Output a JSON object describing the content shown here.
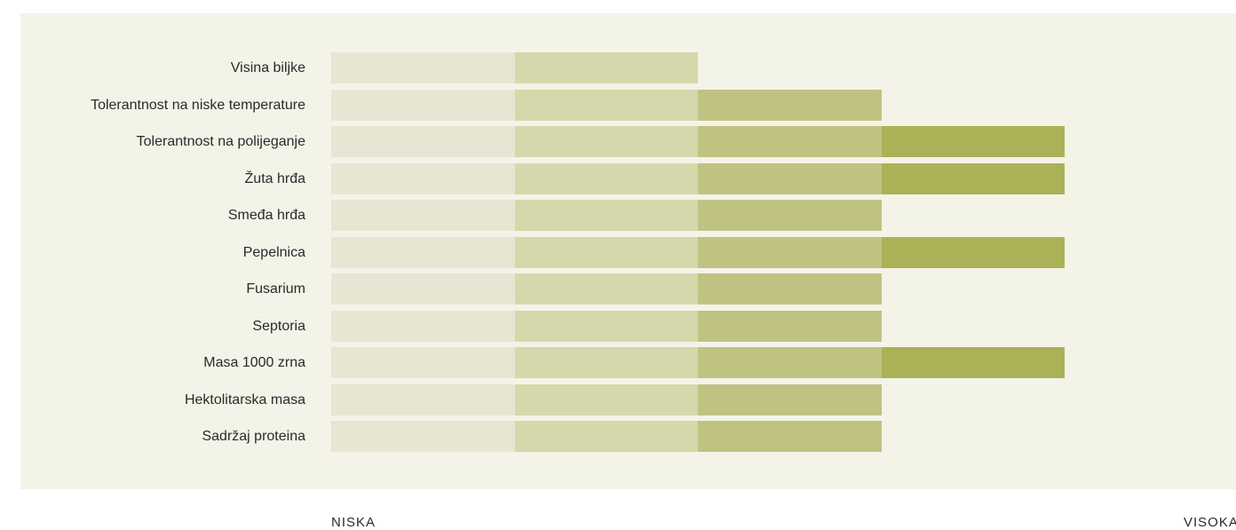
{
  "chart_data": {
    "type": "bar",
    "title": "",
    "scale_min_label": "NISKA",
    "scale_max_label": "VISOKA",
    "max_level": 4,
    "level_colors": [
      "#e6e6d2",
      "#d4d8aa",
      "#c0c282",
      "#abb156"
    ],
    "categories": [
      "Visina biljke",
      "Tolerantnost na niske temperature",
      "Tolerantnost na polijeganje",
      "Žuta hrđa",
      "Smeđa hrđa",
      "Pepelnica",
      "Fusarium",
      "Septoria",
      "Masa 1000 zrna",
      "Hektolitarska masa",
      "Sadržaj proteina"
    ],
    "values": [
      2,
      3,
      4,
      4,
      3,
      4,
      3,
      3,
      4,
      3,
      3
    ]
  }
}
